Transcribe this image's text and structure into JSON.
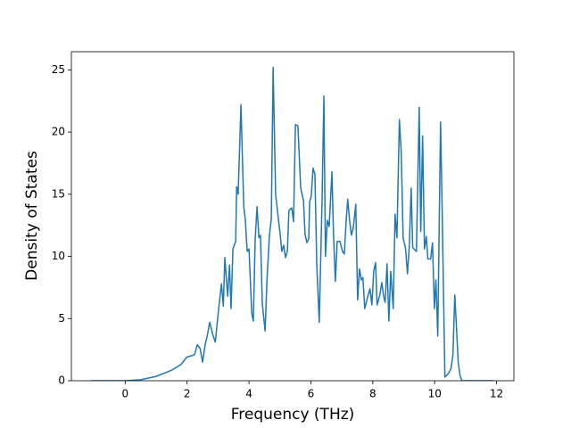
{
  "chart_data": {
    "type": "line",
    "xlabel": "Frequency (THz)",
    "ylabel": "Density of States",
    "x": [
      -1.1,
      0,
      0.5,
      1.0,
      1.5,
      1.8,
      1.99,
      2.13,
      2.24,
      2.33,
      2.42,
      2.5,
      2.59,
      2.65,
      2.73,
      2.82,
      2.91,
      3.02,
      3.11,
      3.17,
      3.22,
      3.31,
      3.37,
      3.42,
      3.48,
      3.57,
      3.6,
      3.65,
      3.74,
      3.83,
      3.88,
      3.94,
      4.0,
      4.09,
      4.14,
      4.2,
      4.26,
      4.32,
      4.37,
      4.43,
      4.52,
      4.58,
      4.66,
      4.72,
      4.78,
      4.86,
      4.95,
      5.01,
      5.06,
      5.12,
      5.18,
      5.24,
      5.29,
      5.38,
      5.44,
      5.5,
      5.58,
      5.67,
      5.76,
      5.81,
      5.87,
      5.93,
      5.96,
      6.01,
      6.07,
      6.13,
      6.19,
      6.27,
      6.36,
      6.42,
      6.47,
      6.53,
      6.59,
      6.68,
      6.73,
      6.79,
      6.85,
      6.94,
      7.02,
      7.08,
      7.14,
      7.19,
      7.25,
      7.31,
      7.37,
      7.45,
      7.51,
      7.57,
      7.63,
      7.68,
      7.74,
      7.83,
      7.91,
      7.97,
      8.03,
      8.09,
      8.14,
      8.23,
      8.29,
      8.35,
      8.4,
      8.46,
      8.52,
      8.58,
      8.66,
      8.72,
      8.78,
      8.86,
      8.92,
      8.98,
      9.06,
      9.12,
      9.18,
      9.24,
      9.29,
      9.41,
      9.5,
      9.55,
      9.61,
      9.67,
      9.73,
      9.78,
      9.87,
      9.93,
      9.99,
      10.04,
      10.1,
      10.19,
      10.24,
      10.33,
      10.45,
      10.53,
      10.59,
      10.65,
      10.71,
      10.76,
      10.82,
      10.88,
      11.91
    ],
    "series": [
      {
        "color": "#1f77b4",
        "values": [
          0,
          0,
          0.08,
          0.35,
          0.85,
          1.3,
          1.9,
          2.0,
          2.1,
          2.9,
          2.6,
          1.5,
          3.0,
          3.6,
          4.7,
          3.8,
          3.1,
          5.8,
          7.8,
          6.0,
          9.9,
          6.8,
          9.3,
          5.8,
          10.6,
          11.2,
          15.6,
          15.0,
          22.2,
          14.0,
          13.0,
          10.4,
          10.6,
          5.4,
          4.8,
          11.4,
          14.0,
          11.5,
          11.7,
          6.2,
          4.0,
          8.0,
          11.7,
          13.0,
          25.2,
          15.0,
          13.0,
          11.7,
          10.4,
          10.9,
          9.9,
          10.4,
          13.7,
          13.9,
          12.8,
          20.6,
          20.5,
          15.5,
          14.5,
          11.8,
          11.1,
          11.4,
          14.4,
          14.8,
          17.1,
          16.6,
          9.4,
          4.7,
          14.4,
          22.9,
          10.0,
          12.9,
          12.4,
          16.8,
          11.8,
          8.0,
          11.2,
          11.2,
          10.4,
          10.2,
          12.9,
          14.6,
          12.9,
          11.7,
          12.3,
          14.2,
          6.5,
          9.0,
          8.1,
          8.3,
          5.8,
          6.7,
          7.4,
          6.1,
          8.8,
          9.5,
          6.1,
          6.9,
          7.9,
          6.8,
          6.3,
          9.4,
          4.8,
          8.8,
          5.8,
          13.4,
          11.5,
          21.0,
          18.3,
          11.5,
          10.6,
          8.6,
          10.8,
          15.5,
          10.7,
          10.4,
          22.0,
          12.0,
          19.7,
          10.6,
          11.6,
          9.8,
          9.8,
          11.1,
          5.8,
          8.1,
          3.6,
          20.8,
          14.0,
          0.3,
          0.6,
          1.0,
          2.1,
          6.9,
          4.0,
          1.5,
          0.4,
          0,
          0
        ]
      }
    ],
    "xlim": [
      -1.74,
      12.56
    ],
    "xticks": [
      0,
      2,
      4,
      6,
      8,
      10,
      12
    ],
    "ylim": [
      0,
      26.46
    ],
    "yticks": [
      0,
      5,
      10,
      15,
      20,
      25
    ]
  }
}
